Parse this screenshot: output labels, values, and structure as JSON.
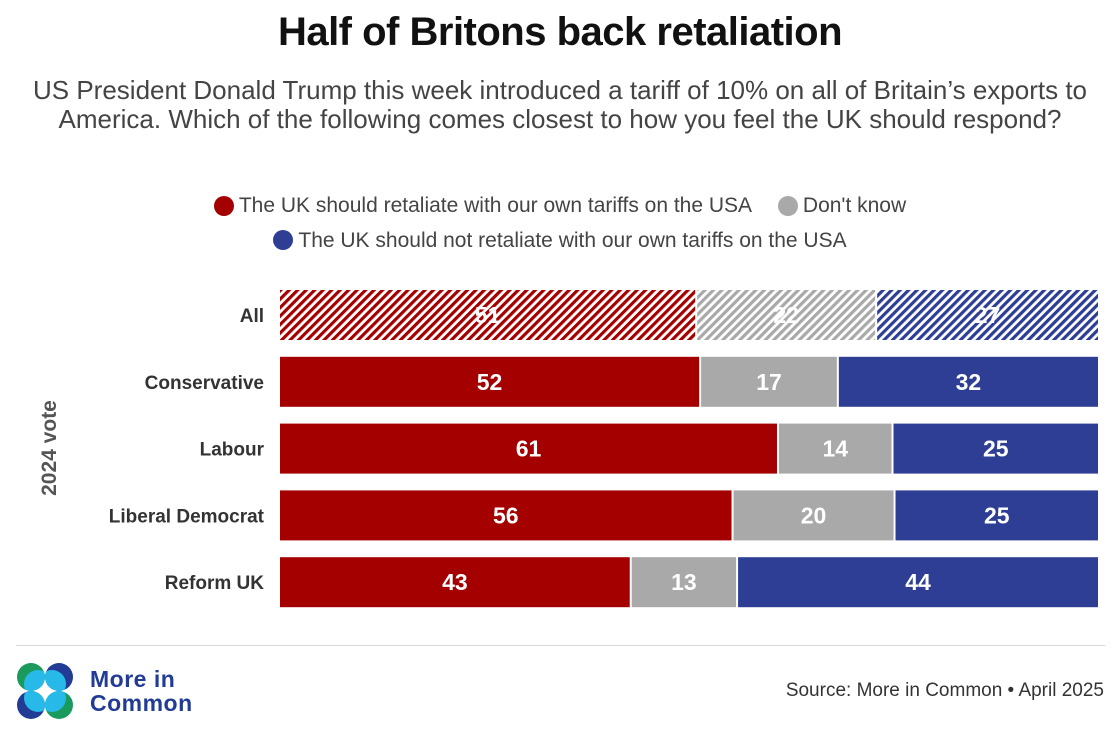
{
  "header": {
    "title": "Half of Britons back retaliation",
    "subtitle": "US President Donald Trump this week introduced a tariff of 10% on all of Britain’s exports to America. Which of the following comes closest to how you feel the UK should respond?"
  },
  "legend": [
    {
      "label": "The UK should retaliate with our own tariffs on the USA",
      "color": "#a40000"
    },
    {
      "label": "Don't know",
      "color": "#a9a9a9"
    },
    {
      "label": "The UK should not retaliate with our own tariffs on the USA",
      "color": "#2d3e94"
    }
  ],
  "chart_data": {
    "type": "bar",
    "orientation": "horizontal",
    "stacked": true,
    "title": "Half of Britons back retaliation",
    "ylabel": "2024 vote",
    "xlabel": "",
    "xlim": [
      0,
      100
    ],
    "grid": false,
    "legend_position": "top",
    "categories": [
      "All",
      "Conservative",
      "Labour",
      "Liberal Democrat",
      "Reform UK"
    ],
    "hatched_categories": [
      "All"
    ],
    "series": [
      {
        "name": "The UK should retaliate with our own tariffs on the USA",
        "color": "#a40000",
        "values": [
          51,
          52,
          61,
          56,
          43
        ]
      },
      {
        "name": "Don't know",
        "color": "#a9a9a9",
        "values": [
          22,
          17,
          14,
          20,
          13
        ]
      },
      {
        "name": "The UK should not retaliate with our own tariffs on the USA",
        "color": "#2d3e94",
        "values": [
          27,
          32,
          25,
          25,
          44
        ]
      }
    ]
  },
  "footer": {
    "brand_line1": "More in",
    "brand_line2": "Common",
    "source": "Source: More in Common • April 2025",
    "logo_colors": {
      "green": "#1a9a5c",
      "navy": "#223c96",
      "cyan": "#27b9e8"
    }
  }
}
